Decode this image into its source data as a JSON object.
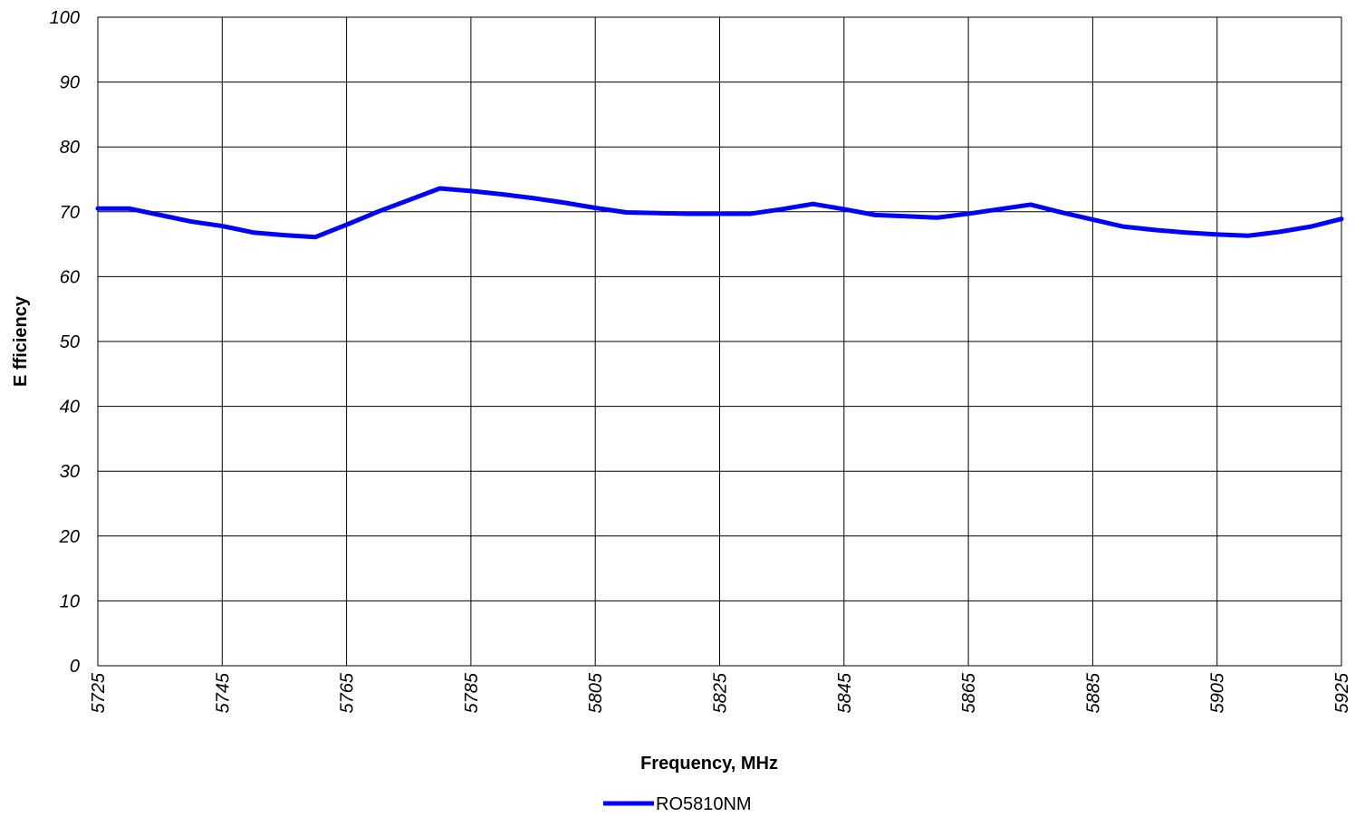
{
  "chart_data": {
    "type": "line",
    "title": "",
    "xlabel": "Frequency, MHz",
    "ylabel": "E fficiency",
    "xlim": [
      5725,
      5925
    ],
    "ylim": [
      0,
      100
    ],
    "x_ticks": [
      "5725",
      "5745",
      "5765",
      "5785",
      "5805",
      "5825",
      "5845",
      "5865",
      "5885",
      "5905",
      "5925"
    ],
    "y_ticks": [
      "0",
      "10",
      "20",
      "30",
      "40",
      "50",
      "60",
      "70",
      "80",
      "90",
      "100"
    ],
    "grid": true,
    "legend_position": "bottom-center",
    "series": [
      {
        "name": "RO5810NM",
        "color": "#0000ff",
        "x": [
          5725,
          5730,
          5735,
          5740,
          5745,
          5750,
          5755,
          5760,
          5765,
          5770,
          5775,
          5780,
          5785,
          5790,
          5795,
          5800,
          5805,
          5810,
          5815,
          5820,
          5825,
          5830,
          5835,
          5840,
          5845,
          5850,
          5855,
          5860,
          5865,
          5870,
          5875,
          5880,
          5885,
          5890,
          5895,
          5900,
          5905,
          5910,
          5915,
          5920,
          5925
        ],
        "values": [
          70.5,
          70.5,
          69.5,
          68.5,
          67.8,
          66.8,
          66.4,
          66.1,
          68.0,
          70.0,
          71.8,
          73.6,
          73.2,
          72.7,
          72.1,
          71.4,
          70.6,
          69.9,
          69.8,
          69.7,
          69.7,
          69.7,
          70.4,
          71.2,
          70.4,
          69.5,
          69.3,
          69.1,
          69.7,
          70.4,
          71.1,
          69.9,
          68.8,
          67.7,
          67.2,
          66.8,
          66.5,
          66.3,
          66.9,
          67.7,
          68.9
        ]
      }
    ]
  }
}
